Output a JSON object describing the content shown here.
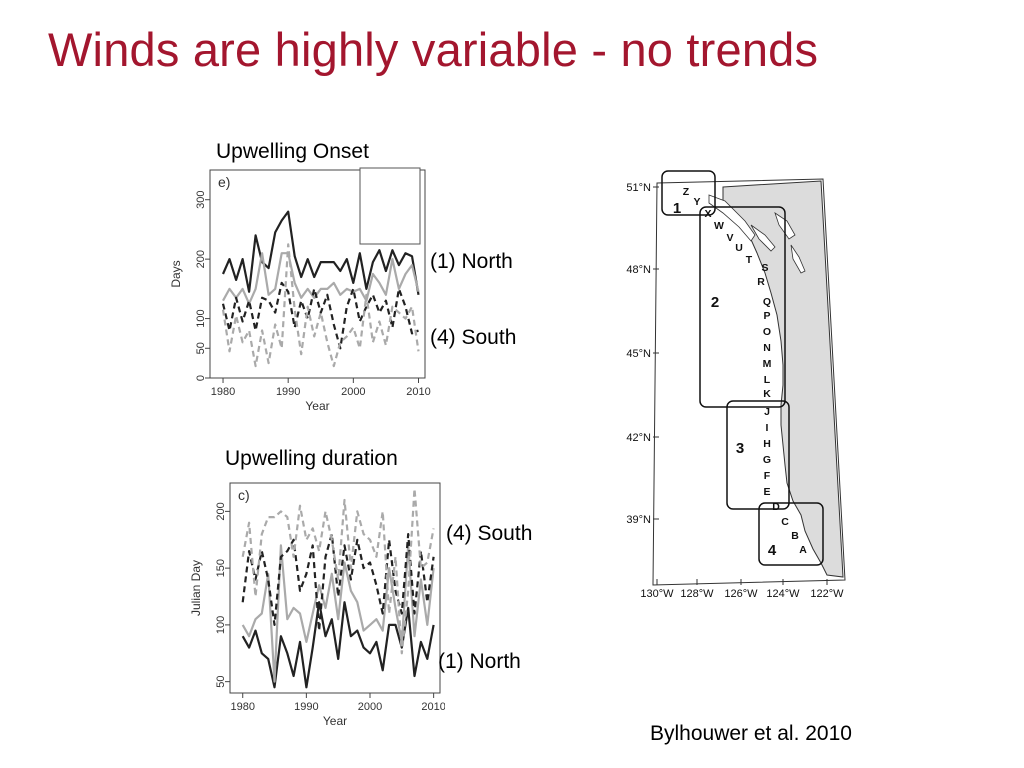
{
  "slide": {
    "title": "Winds are highly variable - no trends",
    "credit": "Bylhouwer et al. 2010",
    "title_color": "#a3162e"
  },
  "chart_data": [
    {
      "type": "line",
      "caption": "Upwelling Onset",
      "panel_letter": "e)",
      "xlabel": "Year",
      "ylabel": "Days",
      "xlim": [
        1978,
        2011
      ],
      "ylim": [
        0,
        350
      ],
      "xticks": [
        1980,
        1990,
        2000,
        2010
      ],
      "yticks": [
        0,
        50,
        100,
        200,
        300
      ],
      "grid": false,
      "legend_labels": [
        "(1) North",
        "(4) South"
      ],
      "x": [
        1980,
        1981,
        1982,
        1983,
        1984,
        1985,
        1986,
        1987,
        1988,
        1989,
        1990,
        1991,
        1992,
        1993,
        1994,
        1995,
        1996,
        1997,
        1998,
        1999,
        2000,
        2001,
        2002,
        2003,
        2004,
        2005,
        2006,
        2007,
        2008,
        2009,
        2010
      ],
      "series": [
        {
          "style": "solid-dark",
          "color": "#222222",
          "values": [
            175,
            200,
            165,
            200,
            145,
            240,
            195,
            185,
            245,
            265,
            280,
            205,
            170,
            200,
            170,
            195,
            195,
            195,
            180,
            200,
            160,
            210,
            150,
            195,
            215,
            180,
            215,
            190,
            210,
            205,
            140
          ]
        },
        {
          "style": "solid-gray",
          "color": "#aaaaaa",
          "values": [
            130,
            150,
            135,
            150,
            125,
            150,
            210,
            140,
            150,
            210,
            210,
            160,
            135,
            150,
            135,
            150,
            150,
            160,
            140,
            150,
            145,
            150,
            130,
            175,
            160,
            140,
            200,
            150,
            175,
            190,
            145
          ]
        },
        {
          "style": "dashed-dark",
          "color": "#222222",
          "values": [
            125,
            80,
            135,
            95,
            130,
            80,
            135,
            130,
            110,
            160,
            145,
            85,
            130,
            100,
            150,
            110,
            140,
            90,
            50,
            120,
            150,
            95,
            120,
            140,
            110,
            130,
            85,
            150,
            120,
            75,
            80
          ]
        },
        {
          "style": "dashed-gray",
          "color": "#aaaaaa",
          "values": [
            115,
            45,
            105,
            60,
            80,
            20,
            80,
            25,
            90,
            50,
            225,
            115,
            40,
            120,
            70,
            110,
            60,
            20,
            60,
            70,
            85,
            50,
            140,
            60,
            95,
            55,
            120,
            110,
            100,
            120,
            45
          ]
        }
      ]
    },
    {
      "type": "line",
      "caption": "Upwelling duration",
      "panel_letter": "c)",
      "xlabel": "Year",
      "ylabel": "Julian Day",
      "xlim": [
        1978,
        2011
      ],
      "ylim": [
        40,
        225
      ],
      "xticks": [
        1980,
        1990,
        2000,
        2010
      ],
      "yticks": [
        50,
        100,
        150,
        200
      ],
      "grid": false,
      "legend_labels": [
        "(4) South",
        "(1) North"
      ],
      "x": [
        1980,
        1981,
        1982,
        1983,
        1984,
        1985,
        1986,
        1987,
        1988,
        1989,
        1990,
        1991,
        1992,
        1993,
        1994,
        1995,
        1996,
        1997,
        1998,
        1999,
        2000,
        2001,
        2002,
        2003,
        2004,
        2005,
        2006,
        2007,
        2008,
        2009,
        2010
      ],
      "series": [
        {
          "style": "solid-dark",
          "color": "#222222",
          "values": [
            90,
            80,
            95,
            75,
            70,
            45,
            90,
            75,
            55,
            85,
            45,
            80,
            120,
            90,
            105,
            70,
            120,
            90,
            95,
            80,
            75,
            85,
            60,
            100,
            100,
            80,
            115,
            55,
            85,
            70,
            100
          ]
        },
        {
          "style": "solid-gray",
          "color": "#aaaaaa",
          "values": [
            100,
            90,
            105,
            110,
            145,
            50,
            170,
            105,
            115,
            110,
            85,
            110,
            135,
            115,
            145,
            105,
            155,
            130,
            120,
            95,
            100,
            105,
            95,
            150,
            115,
            85,
            170,
            90,
            140,
            100,
            150
          ]
        },
        {
          "style": "dashed-dark",
          "color": "#222222",
          "values": [
            120,
            165,
            140,
            165,
            140,
            100,
            160,
            165,
            175,
            130,
            145,
            170,
            95,
            160,
            180,
            125,
            170,
            140,
            175,
            150,
            155,
            135,
            110,
            175,
            130,
            110,
            180,
            110,
            165,
            120,
            160
          ]
        },
        {
          "style": "dashed-gray",
          "color": "#aaaaaa",
          "values": [
            160,
            190,
            125,
            180,
            195,
            195,
            200,
            195,
            160,
            205,
            175,
            185,
            165,
            200,
            175,
            140,
            210,
            150,
            200,
            180,
            175,
            160,
            200,
            110,
            160,
            75,
            130,
            220,
            150,
            155,
            185
          ]
        }
      ]
    },
    {
      "type": "map",
      "lat_labels": [
        "51°N",
        "48°N",
        "45°N",
        "42°N",
        "39°N"
      ],
      "lon_labels": [
        "130°W",
        "128°W",
        "126°W",
        "124°W",
        "122°W"
      ],
      "region_labels": [
        "1",
        "2",
        "3",
        "4"
      ],
      "site_letters": [
        "Z",
        "Y",
        "X",
        "W",
        "V",
        "U",
        "T",
        "S",
        "R",
        "Q",
        "P",
        "O",
        "N",
        "M",
        "L",
        "K",
        "J",
        "I",
        "H",
        "G",
        "F",
        "E",
        "D",
        "C",
        "B",
        "A"
      ]
    }
  ]
}
